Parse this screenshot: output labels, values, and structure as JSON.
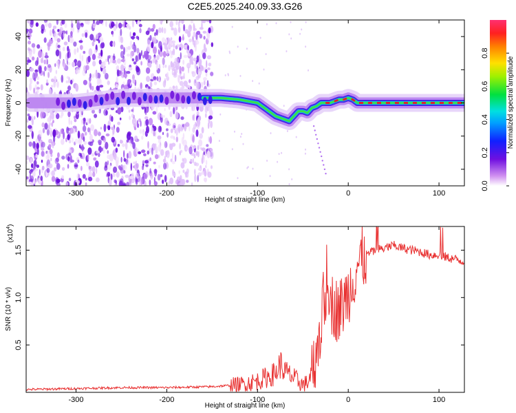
{
  "title": "C2E5.2025.240.09.33.G26",
  "chart_data": [
    {
      "type": "heatmap",
      "xlabel": "Height of straight line (km)",
      "ylabel": "Frequency (Hz)",
      "xlim": [
        -355,
        128
      ],
      "ylim": [
        -50,
        50
      ],
      "xticks": [
        -300,
        -200,
        -100,
        0,
        100
      ],
      "yticks": [
        -40,
        -20,
        0,
        20,
        40
      ],
      "colorbar": {
        "label": "Normalized spectral amplitude",
        "range": [
          0,
          1
        ],
        "ticks": [
          0.0,
          0.2,
          0.4,
          0.6,
          0.8
        ],
        "tick_labels": [
          "0.0",
          "0.2",
          "0.4",
          "0.6",
          "0.8"
        ],
        "colormap": "rainbow (violet to red)"
      },
      "ridge": {
        "x": [
          -350,
          -300,
          -250,
          -200,
          -160,
          -140,
          -120,
          -100,
          -90,
          -80,
          -70,
          -65,
          -60,
          -55,
          -50,
          -45,
          -40,
          -35,
          -30,
          -25,
          -20,
          -15,
          -10,
          -5,
          0,
          5,
          10,
          20,
          40,
          60,
          80,
          100,
          120,
          128
        ],
        "y": [
          0,
          0,
          3,
          3,
          3,
          3,
          2,
          0,
          -4,
          -8,
          -10,
          -11,
          -8,
          -5,
          -5,
          -6,
          -3,
          -2,
          0,
          0,
          0,
          1,
          2,
          2,
          3,
          2,
          0,
          0,
          0,
          0,
          0,
          0,
          0,
          0
        ]
      },
      "noise_region": {
        "x": [
          -355,
          -150
        ],
        "y": [
          -50,
          50
        ]
      }
    },
    {
      "type": "line",
      "xlabel": "Height of straight line (km)",
      "ylabel": "SNR (10 * v/v)",
      "multiplier_label": "(x10",
      "multiplier_exp": "4",
      "xlim": [
        -355,
        128
      ],
      "ylim": [
        0,
        1.75
      ],
      "xticks": [
        -300,
        -200,
        -100,
        0,
        100
      ],
      "yticks": [
        0.5,
        1.0,
        1.5
      ],
      "ytick_labels": [
        "0.5",
        "1.0",
        "1.5"
      ],
      "color": "#e83030",
      "series": [
        {
          "x": [
            -355,
            -300,
            -250,
            -200,
            -150,
            -120,
            -100,
            -90,
            -80,
            -75,
            -70,
            -60,
            -50,
            -45,
            -40,
            -35,
            -30,
            -25,
            -22,
            -20,
            -15,
            -10,
            -5,
            0,
            5,
            10,
            20,
            30,
            40,
            50,
            60,
            70,
            80,
            90,
            100,
            110,
            120,
            128
          ],
          "values": [
            0.03,
            0.04,
            0.05,
            0.05,
            0.06,
            0.08,
            0.12,
            0.16,
            0.2,
            0.3,
            0.22,
            0.15,
            0.08,
            0.1,
            0.2,
            0.45,
            0.7,
            1.05,
            1.25,
            0.95,
            0.9,
            0.85,
            0.95,
            1.05,
            1.2,
            1.35,
            1.45,
            1.5,
            1.52,
            1.55,
            1.52,
            1.5,
            1.48,
            1.45,
            1.45,
            1.42,
            1.4,
            1.38
          ]
        }
      ]
    }
  ],
  "colors": {
    "line": "#e83030",
    "noise": "#7a30e0",
    "ridge_core": "#e0202a"
  }
}
